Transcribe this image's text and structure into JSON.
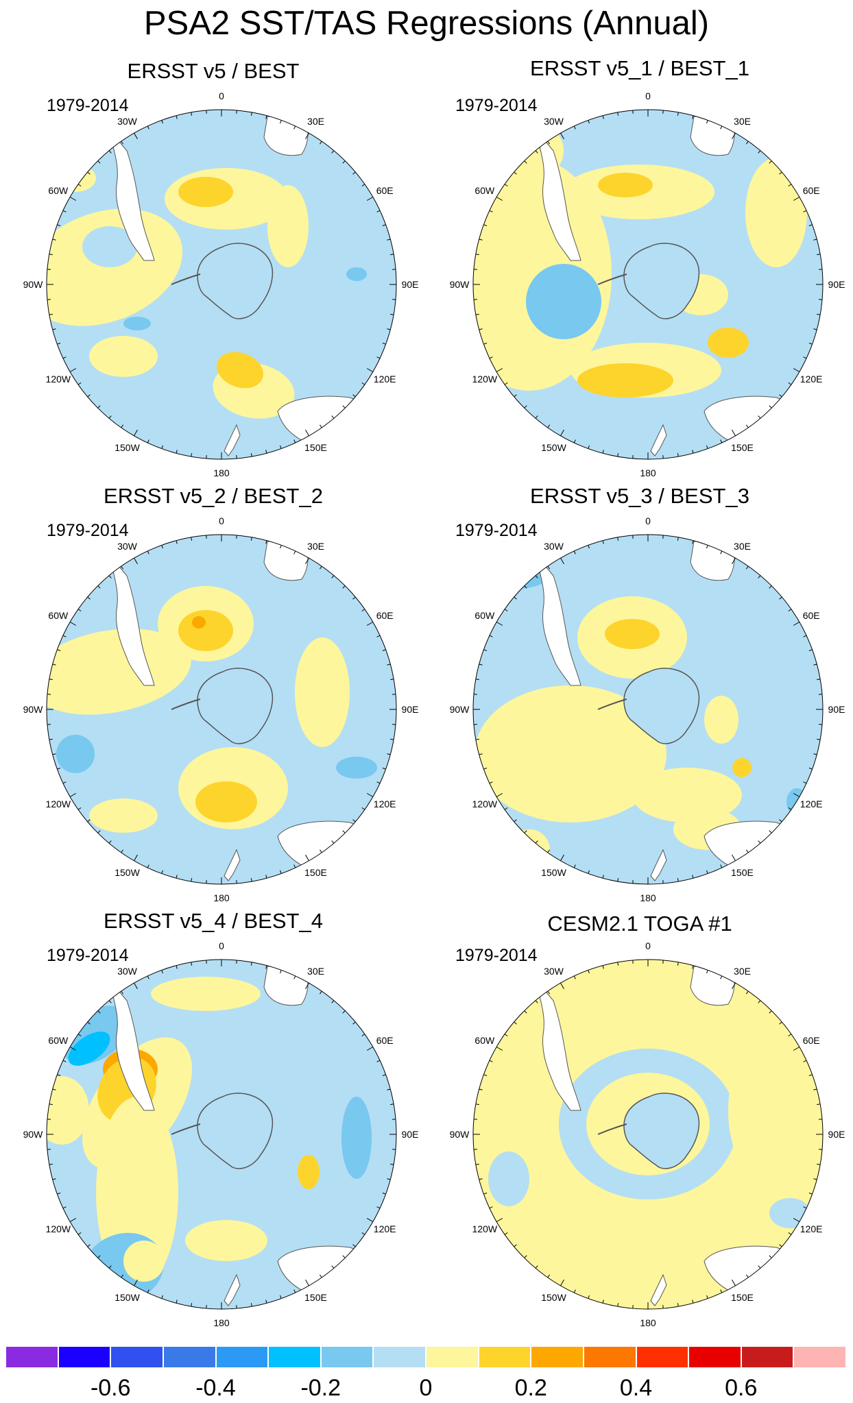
{
  "title": "PSA2 SST/TAS Regressions (Annual)",
  "lon_labels": [
    "0",
    "30E",
    "60E",
    "90E",
    "120E",
    "150E",
    "180",
    "150W",
    "120W",
    "90W",
    "60W",
    "30W"
  ],
  "panels": [
    {
      "title": "ERSST v5 / BEST",
      "years": "1979-2014"
    },
    {
      "title": "ERSST v5_1 / BEST_1",
      "years": "1979-2014"
    },
    {
      "title": "ERSST v5_2 / BEST_2",
      "years": "1979-2014"
    },
    {
      "title": "ERSST v5_3 / BEST_3",
      "years": "1979-2014"
    },
    {
      "title": "ERSST v5_4 / BEST_4",
      "years": "1979-2014"
    },
    {
      "title": "CESM2.1 TOGA #1",
      "years": "1979-2014"
    }
  ],
  "colorbar": {
    "colors": [
      "#8a2be2",
      "#1c00ff",
      "#3050f0",
      "#3a7ae8",
      "#2a9af5",
      "#00c0ff",
      "#78c8f0",
      "#b4def4",
      "#fdf69c",
      "#fdd42c",
      "#fca800",
      "#fc7800",
      "#ff3000",
      "#e80000",
      "#c81c1c",
      "#ffb4b4"
    ],
    "labels": [
      "-0.6",
      "-0.4",
      "-0.2",
      "0",
      "0.2",
      "0.4",
      "0.6"
    ]
  }
}
